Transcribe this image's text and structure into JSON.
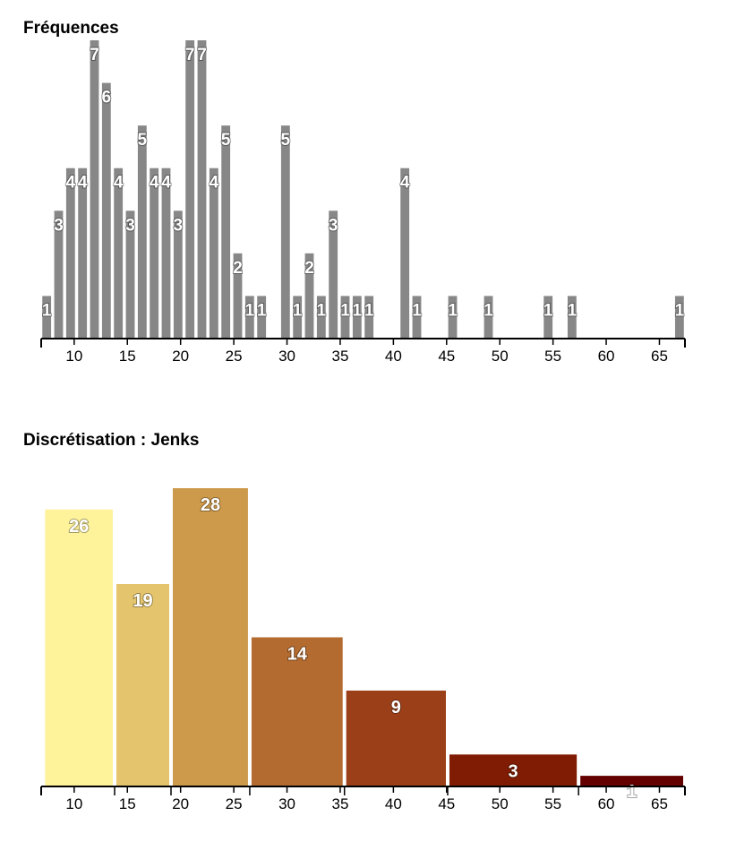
{
  "chart_data": [
    {
      "type": "bar",
      "title": "Fréquences",
      "xlabel": "",
      "ylabel": "",
      "xlim": [
        6.9,
        67.4
      ],
      "bin_start": 6.92,
      "bin_width": 1.122,
      "counts": [
        1,
        3,
        4,
        4,
        7,
        6,
        4,
        3,
        5,
        4,
        4,
        3,
        7,
        7,
        4,
        5,
        2,
        1,
        1,
        0,
        5,
        1,
        2,
        1,
        3,
        1,
        1,
        1,
        0,
        0,
        4,
        1,
        0,
        0,
        1,
        0,
        0,
        1,
        0,
        0,
        0,
        0,
        1,
        0,
        1,
        0,
        0,
        0,
        0,
        0,
        0,
        0,
        0,
        1
      ],
      "ylim": [
        0,
        7
      ],
      "xticks": [
        10,
        15,
        20,
        25,
        30,
        35,
        40,
        45,
        50,
        55,
        60,
        65
      ],
      "bar_color": "#878787",
      "grid": false
    },
    {
      "type": "bar",
      "title": "Discrétisation : Jenks",
      "xlabel": "",
      "ylabel": "",
      "xlim": [
        6.9,
        67.4
      ],
      "classes": [
        {
          "from": 7.1,
          "to": 13.8,
          "count": 26,
          "color": "#fef29a"
        },
        {
          "from": 13.8,
          "to": 19.1,
          "count": 19,
          "color": "#e4c46c"
        },
        {
          "from": 19.1,
          "to": 26.5,
          "count": 28,
          "color": "#cd9a4c"
        },
        {
          "from": 26.5,
          "to": 35.4,
          "count": 14,
          "color": "#b36b30"
        },
        {
          "from": 35.4,
          "to": 45.1,
          "count": 9,
          "color": "#9b3f19"
        },
        {
          "from": 45.1,
          "to": 57.4,
          "count": 3,
          "color": "#801c03"
        },
        {
          "from": 57.4,
          "to": 67.4,
          "count": 1,
          "color": "#640000"
        }
      ],
      "ylim": [
        0,
        28
      ],
      "xticks": [
        10,
        15,
        20,
        25,
        30,
        35,
        40,
        45,
        50,
        55,
        60,
        65
      ],
      "grid": false
    }
  ]
}
